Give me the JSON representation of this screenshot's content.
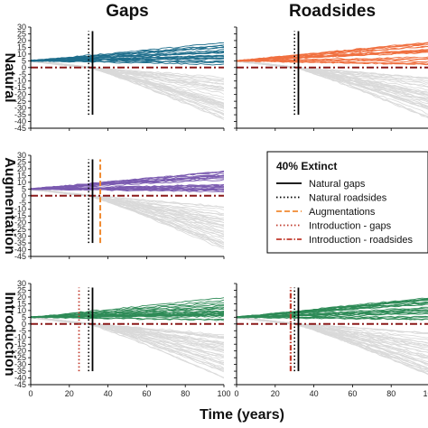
{
  "chart_data": {
    "type": "line",
    "column_titles": [
      "Gaps",
      "Roadsides"
    ],
    "row_labels": [
      "Natural",
      "Augmentation",
      "Introduction"
    ],
    "xlabel": "Time (years)",
    "xlim": [
      0,
      100
    ],
    "ylim": [
      -45,
      30
    ],
    "x_ticks": [
      0,
      20,
      40,
      60,
      80,
      100
    ],
    "y_ticks": [
      30,
      25,
      20,
      15,
      10,
      5,
      0,
      -5,
      -10,
      -15,
      -20,
      -25,
      -30,
      -35,
      -40,
      -45
    ],
    "zero_line_color": "#8b1a1a",
    "background_series_color": "#d9d9d9",
    "panels": [
      {
        "row": "Natural",
        "column": "Gaps",
        "color": "#1f6e8c",
        "vlines": [
          {
            "type": "natural_gaps",
            "x": 32
          },
          {
            "type": "natural_roadsides",
            "x": 30
          }
        ]
      },
      {
        "row": "Natural",
        "column": "Roadsides",
        "color": "#f07040",
        "vlines": [
          {
            "type": "natural_gaps",
            "x": 32
          },
          {
            "type": "natural_roadsides",
            "x": 30
          }
        ]
      },
      {
        "row": "Augmentation",
        "column": "Gaps",
        "color": "#7b5bb0",
        "vlines": [
          {
            "type": "natural_gaps",
            "x": 32
          },
          {
            "type": "natural_roadsides",
            "x": 30
          },
          {
            "type": "augmentations",
            "x": 36
          }
        ]
      },
      {
        "row": "Introduction",
        "column": "Gaps",
        "color": "#2e8b57",
        "vlines": [
          {
            "type": "natural_gaps",
            "x": 32
          },
          {
            "type": "natural_roadsides",
            "x": 30
          },
          {
            "type": "introduction_gaps",
            "x": 25
          }
        ]
      },
      {
        "row": "Introduction",
        "column": "Roadsides",
        "color": "#2e8b57",
        "vlines": [
          {
            "type": "natural_gaps",
            "x": 32
          },
          {
            "type": "natural_roadsides",
            "x": 30
          },
          {
            "type": "introduction_roadsides",
            "x": 28
          }
        ]
      }
    ],
    "legend": {
      "title": "40% Extinct",
      "entries": [
        {
          "label": "Natural gaps",
          "color": "#000000",
          "style": "solid"
        },
        {
          "label": "Natural roadsides",
          "color": "#000000",
          "style": "dotted"
        },
        {
          "label": "Augmentations",
          "color": "#f08a30",
          "style": "dashed"
        },
        {
          "label": "Introduction - gaps",
          "color": "#c0392b",
          "style": "dotted"
        },
        {
          "label": "Introduction - roadsides",
          "color": "#c0392b",
          "style": "dashdot"
        }
      ]
    }
  }
}
